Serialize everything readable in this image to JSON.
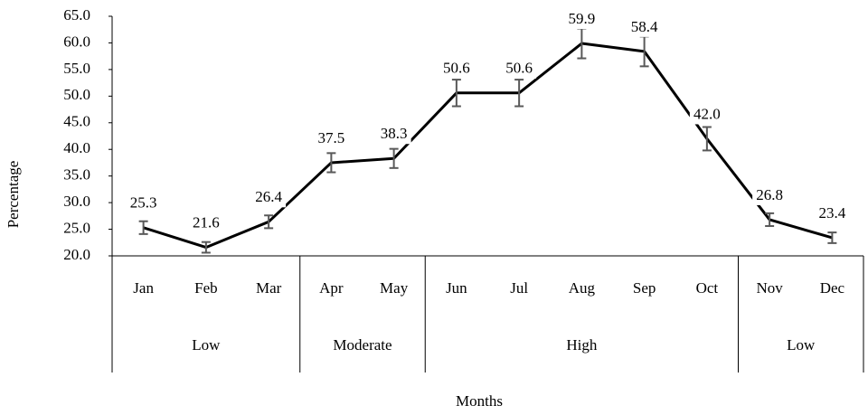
{
  "chart_data": {
    "type": "line",
    "x_label": "Months",
    "y_label": "Percentage",
    "categories": [
      "Jan",
      "Feb",
      "Mar",
      "Apr",
      "May",
      "Jun",
      "Jul",
      "Aug",
      "Sep",
      "Oct",
      "Nov",
      "Dec"
    ],
    "groups": [
      {
        "name": "Low",
        "span": 3
      },
      {
        "name": "Moderate",
        "span": 2
      },
      {
        "name": "High",
        "span": 5
      },
      {
        "name": "Low",
        "span": 2
      }
    ],
    "values": [
      25.3,
      21.6,
      26.4,
      37.5,
      38.3,
      50.6,
      50.6,
      59.9,
      58.4,
      42.0,
      26.8,
      23.4
    ],
    "value_labels": [
      "25.3",
      "21.6",
      "26.4",
      "37.5",
      "38.3",
      "50.6",
      "50.6",
      "59.9",
      "58.4",
      "42.0",
      "26.8",
      "23.4"
    ],
    "errors": [
      1.2,
      1.0,
      1.2,
      1.8,
      1.8,
      2.5,
      2.5,
      2.8,
      2.8,
      2.2,
      1.2,
      1.0
    ],
    "color": "#000000",
    "error_color": "#595959",
    "ylim": [
      20,
      65
    ],
    "yticks": [
      {
        "value": 20,
        "label": "20.0"
      },
      {
        "value": 25,
        "label": "25.0"
      },
      {
        "value": 30,
        "label": "30.0"
      },
      {
        "value": 35,
        "label": "35.0"
      },
      {
        "value": 40,
        "label": "40.0"
      },
      {
        "value": 45,
        "label": "45.0"
      },
      {
        "value": 50,
        "label": "50.0"
      },
      {
        "value": 55,
        "label": "55.0"
      },
      {
        "value": 60,
        "label": "60.0"
      },
      {
        "value": 65,
        "label": "65.0"
      }
    ],
    "grid": false
  }
}
